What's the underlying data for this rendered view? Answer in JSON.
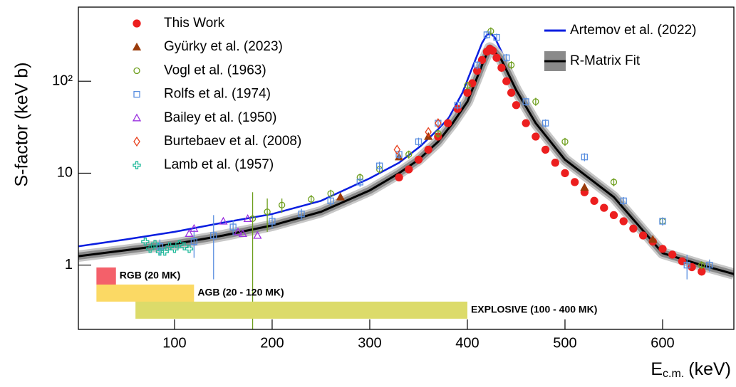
{
  "chart_data": {
    "type": "scatter",
    "ylabel": "S-factor (keV b)",
    "xlabel": "E",
    "xlabel_sub": "c.m.",
    "xlabel_unit": "(keV)",
    "xlim": [
      1.5,
      673
    ],
    "ylim": [
      0.2,
      640
    ],
    "ylog": true,
    "xticks": [
      100,
      200,
      300,
      400,
      500,
      600
    ],
    "yticks": [
      1,
      10,
      {
        "value": 100,
        "label": "10²"
      }
    ],
    "bands": [
      {
        "label": "RGB (20 MK)",
        "x0": 20,
        "x1": 40,
        "color": "#f4606a"
      },
      {
        "label": "AGB (20 - 120 MK)",
        "x0": 20,
        "x1": 120,
        "color": "#fbd964"
      },
      {
        "label": "EXPLOSIVE (100 - 400 MK)",
        "x0": 60,
        "x1": 400,
        "color": "#dcdb6a"
      }
    ],
    "series": [
      {
        "name": "This Work",
        "kind": "scatter",
        "marker": "circle",
        "filled": true,
        "color": "#ec1f1f",
        "x": [
          330,
          340,
          350,
          360,
          370,
          380,
          390,
          400,
          405,
          410,
          415,
          420,
          423,
          426,
          430,
          435,
          440,
          445,
          450,
          460,
          470,
          480,
          490,
          500,
          510,
          520,
          530,
          540,
          550,
          560,
          570,
          580,
          590,
          600,
          610,
          620,
          630,
          640
        ],
        "values": [
          9,
          11,
          14,
          18,
          25,
          35,
          50,
          75,
          95,
          130,
          170,
          210,
          225,
          215,
          180,
          140,
          100,
          75,
          55,
          35,
          25,
          18,
          13,
          10,
          8,
          6.2,
          5,
          4.2,
          3.5,
          3,
          2.5,
          2.1,
          1.8,
          1.5,
          1.3,
          1.1,
          0.95,
          0.85
        ]
      },
      {
        "name": "Gyürky et al. (2023)",
        "kind": "scatter",
        "marker": "triangle",
        "filled": true,
        "color": "#9a3b0a",
        "x": [
          270,
          330,
          360,
          520,
          590
        ],
        "values": [
          5.5,
          15,
          25,
          7,
          1.9
        ]
      },
      {
        "name": "Vogl et al. (1963)",
        "kind": "scatter",
        "marker": "circle",
        "filled": false,
        "color": "#6d9e1c",
        "x": [
          180,
          195,
          210,
          240,
          260,
          290,
          310,
          340,
          370,
          400,
          424,
          445,
          470,
          500,
          550,
          600,
          640
        ],
        "values": [
          3.2,
          3.8,
          4.5,
          5.2,
          6,
          9,
          11,
          16,
          27,
          90,
          350,
          150,
          60,
          22,
          8,
          3,
          1.0
        ],
        "errors": [
          3,
          1.5,
          0.8,
          0.6,
          0.6,
          0.9,
          1.1,
          1.6,
          2.7,
          9,
          35,
          15,
          6,
          2.2,
          0.8,
          0.3,
          0.1
        ]
      },
      {
        "name": "Rolfs et al. (1974)",
        "kind": "scatter",
        "marker": "square",
        "filled": false,
        "color": "#5a8fe0",
        "x": [
          85,
          120,
          140,
          160,
          200,
          230,
          260,
          290,
          310,
          330,
          350,
          370,
          390,
          410,
          420,
          430,
          440,
          460,
          480,
          520,
          560,
          600,
          625,
          648
        ],
        "values": [
          1.6,
          1.8,
          2.1,
          2.6,
          3.0,
          3.6,
          5,
          8,
          12,
          16,
          22,
          35,
          55,
          150,
          320,
          300,
          180,
          60,
          35,
          15,
          5,
          3,
          1.0,
          1.0
        ],
        "errors": [
          0.3,
          0.6,
          1.4,
          0.5,
          0.5,
          0.5,
          0.6,
          0.9,
          1.3,
          1.7,
          2.3,
          3.6,
          5.6,
          15,
          32,
          30,
          18,
          6,
          3.5,
          1.5,
          0.5,
          0.3,
          0.3,
          0.15
        ]
      },
      {
        "name": "Bailey et al. (1950)",
        "kind": "scatter",
        "marker": "triangle",
        "filled": false,
        "color": "#9b32e0",
        "x": [
          115,
          120,
          150,
          165,
          170,
          175,
          185
        ],
        "values": [
          2.2,
          2.5,
          3.0,
          2.3,
          2.2,
          3.2,
          2.1
        ]
      },
      {
        "name": "Burtebaev et al. (2008)",
        "kind": "scatter",
        "marker": "diamond",
        "filled": false,
        "color": "#e8401c",
        "x": [
          328,
          360,
          370
        ],
        "values": [
          18,
          28,
          35
        ]
      },
      {
        "name": "Lamb et al. (1957)",
        "kind": "scatter",
        "marker": "cross",
        "filled": false,
        "color": "#1fb99a",
        "x": [
          70,
          75,
          80,
          85,
          90,
          95,
          100,
          105,
          110,
          115
        ],
        "values": [
          1.8,
          1.5,
          1.7,
          1.4,
          1.4,
          1.6,
          1.5,
          1.7,
          1.6,
          1.5
        ]
      },
      {
        "name": "Artemov et al. (2022)",
        "kind": "line",
        "color": "#0a1ee0",
        "x": [
          1.5,
          50,
          100,
          150,
          200,
          250,
          300,
          330,
          352,
          370,
          381,
          395,
          405,
          415,
          420,
          424,
          428,
          435,
          450,
          468,
          500,
          550,
          600,
          640,
          673
        ],
        "values": [
          1.6,
          1.9,
          2.3,
          2.9,
          3.6,
          5,
          8.8,
          13,
          19.7,
          30,
          40,
          75,
          140,
          260,
          320,
          330,
          300,
          210,
          99,
          40,
          15,
          5.5,
          1.5,
          1.05,
          0.85
        ]
      },
      {
        "name": "R-Matrix Fit",
        "kind": "line",
        "band": true,
        "color": "#000000",
        "x": [
          1.5,
          50,
          100,
          150,
          200,
          250,
          300,
          330,
          350,
          370,
          385,
          400,
          410,
          415,
          420,
          423,
          427,
          435,
          450,
          470,
          500,
          550,
          600,
          640,
          673
        ],
        "values": [
          1.25,
          1.45,
          1.7,
          2.1,
          2.7,
          3.8,
          6.5,
          10,
          14,
          22,
          35,
          60,
          110,
          150,
          200,
          230,
          215,
          170,
          80,
          35,
          14,
          5.5,
          1.35,
          1.0,
          0.8
        ]
      }
    ]
  }
}
